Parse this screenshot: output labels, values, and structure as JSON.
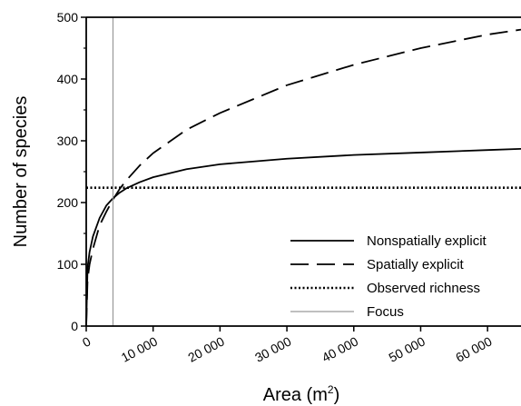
{
  "chart_data": {
    "type": "line",
    "title": "",
    "xlabel": "Area (m",
    "xlabel_sup": "2",
    "xlabel_close": ")",
    "ylabel": "Number of species",
    "xlim": [
      0,
      65000
    ],
    "ylim": [
      0,
      500
    ],
    "x_ticks": [
      0,
      10000,
      20000,
      30000,
      40000,
      50000,
      60000
    ],
    "x_tick_labels": [
      "0",
      "10 000",
      "20 000",
      "30 000",
      "40 000",
      "50 000",
      "60 000"
    ],
    "y_ticks": [
      0,
      100,
      200,
      300,
      400,
      500
    ],
    "y_tick_labels": [
      "0",
      "100",
      "200",
      "300",
      "400",
      "500"
    ],
    "grid": false,
    "legend_position": "bottom-right",
    "series": [
      {
        "name": "Nonspatially explicit",
        "style": "solid",
        "color": "#000000",
        "x": [
          0,
          200,
          500,
          1000,
          2000,
          3000,
          4000,
          5000,
          6000,
          8000,
          10000,
          15000,
          20000,
          30000,
          40000,
          50000,
          60000,
          65000
        ],
        "y": [
          0,
          95,
          120,
          145,
          175,
          195,
          207,
          216,
          223,
          233,
          241,
          254,
          262,
          271,
          277,
          281,
          285,
          287
        ]
      },
      {
        "name": "Spatially explicit",
        "style": "dashed",
        "color": "#000000",
        "x": [
          0,
          200,
          500,
          1000,
          2000,
          3000,
          4000,
          5000,
          6000,
          8000,
          10000,
          15000,
          20000,
          30000,
          40000,
          50000,
          60000,
          65000
        ],
        "y": [
          0,
          75,
          100,
          125,
          163,
          185,
          205,
          222,
          236,
          260,
          280,
          318,
          345,
          390,
          423,
          450,
          472,
          480
        ]
      },
      {
        "name": "Observed richness",
        "style": "dotted",
        "color": "#000000",
        "x": [
          0,
          65000
        ],
        "y": [
          224,
          224
        ]
      },
      {
        "name": "Focus",
        "style": "vertical",
        "color": "#999999",
        "x": [
          4000,
          4000
        ],
        "y": [
          0,
          500
        ]
      }
    ]
  }
}
